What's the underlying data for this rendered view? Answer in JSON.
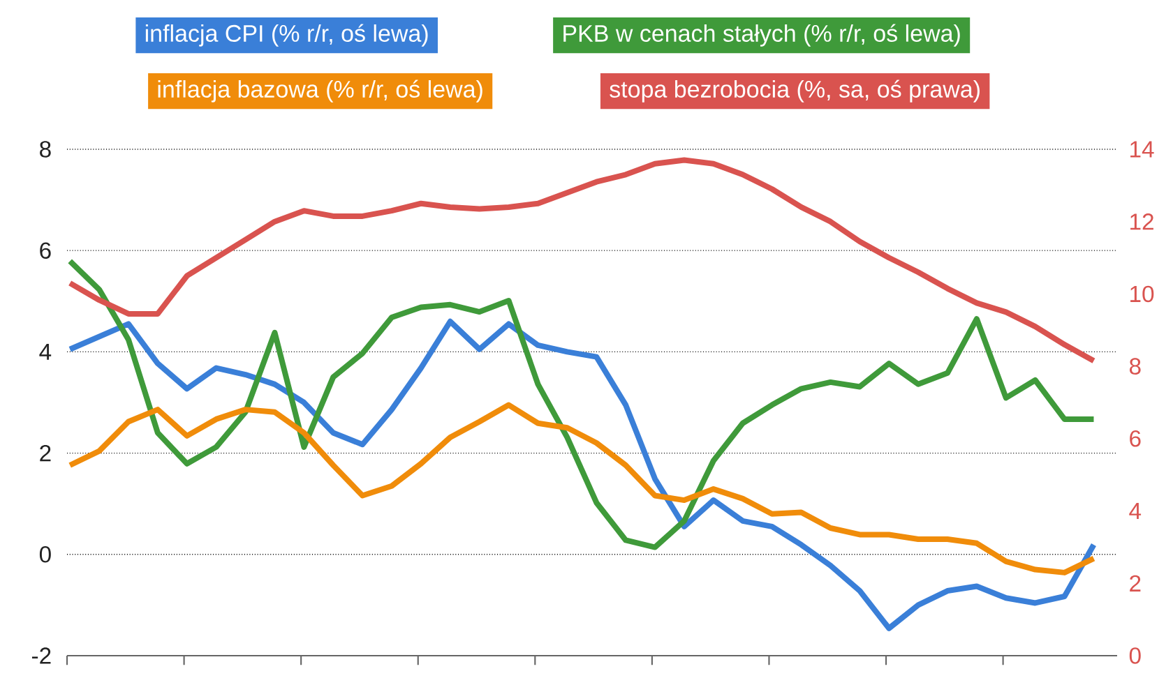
{
  "chart_data": {
    "type": "line",
    "categories": [
      null,
      null,
      null,
      null,
      null,
      null,
      null,
      null,
      null,
      null,
      null,
      null,
      null,
      null,
      null,
      null,
      null,
      null,
      null,
      null,
      null,
      null,
      null,
      null,
      null,
      null,
      null,
      null,
      null,
      null,
      null,
      null,
      null,
      null,
      null,
      null
    ],
    "series": [
      {
        "name": "inflacja CPI (% r/r, oś lewa)",
        "color": "#3a7fd8",
        "values": [
          4.05,
          4.3,
          4.55,
          3.77,
          3.27,
          3.68,
          3.55,
          3.36,
          3.0,
          2.4,
          2.17,
          2.86,
          3.68,
          4.6,
          4.05,
          4.55,
          4.13,
          4.0,
          3.9,
          2.95,
          1.49,
          0.55,
          1.07,
          0.66,
          0.55,
          0.19,
          -0.22,
          -0.72,
          -1.46,
          -1.0,
          -0.72,
          -0.63,
          -0.86,
          -0.96,
          -0.83,
          0.19
        ]
      },
      {
        "name": "PKB w cenach stałych (% r/r, oś lewa)",
        "color": "#3f9a3a",
        "values": [
          5.79,
          5.23,
          4.24,
          2.4,
          1.79,
          2.12,
          2.81,
          4.38,
          2.12,
          3.5,
          3.97,
          4.68,
          4.88,
          4.93,
          4.79,
          5.01,
          3.36,
          2.31,
          1.02,
          0.28,
          0.14,
          0.66,
          1.85,
          2.59,
          2.95,
          3.27,
          3.4,
          3.31,
          3.77,
          3.36,
          3.58,
          4.65,
          3.09,
          3.44,
          2.67,
          2.67
        ]
      },
      {
        "name": "inflacja bazowa (% r/r, oś lewa)",
        "color": "#f08c0a",
        "values": [
          1.76,
          2.04,
          2.62,
          2.86,
          2.34,
          2.67,
          2.86,
          2.81,
          2.4,
          1.76,
          1.16,
          1.35,
          1.79,
          2.31,
          2.62,
          2.95,
          2.59,
          2.5,
          2.2,
          1.76,
          1.16,
          1.07,
          1.29,
          1.1,
          0.8,
          0.83,
          0.52,
          0.39,
          0.39,
          0.3,
          0.3,
          0.22,
          -0.14,
          -0.3,
          -0.36,
          -0.08
        ]
      },
      {
        "name": "stopa bezrobocia (%, sa, oś prawa)",
        "color": "#d9534f",
        "axis": "y2",
        "values": [
          10.3,
          9.83,
          9.45,
          9.45,
          10.5,
          11.0,
          11.5,
          12.0,
          12.3,
          12.15,
          12.15,
          12.3,
          12.5,
          12.4,
          12.35,
          12.4,
          12.5,
          12.8,
          13.1,
          13.3,
          13.6,
          13.7,
          13.6,
          13.3,
          12.9,
          12.4,
          12.0,
          11.45,
          11.0,
          10.6,
          10.15,
          9.75,
          9.5,
          9.1,
          8.6,
          8.15
        ]
      }
    ],
    "ylim": [
      -2,
      8
    ],
    "yticks": [
      -2,
      0,
      2,
      4,
      6,
      8
    ],
    "y2lim": [
      0,
      14
    ],
    "y2ticks": [
      0,
      2,
      4,
      6,
      8,
      10,
      12,
      14
    ],
    "grid": "y",
    "legend": "top"
  }
}
